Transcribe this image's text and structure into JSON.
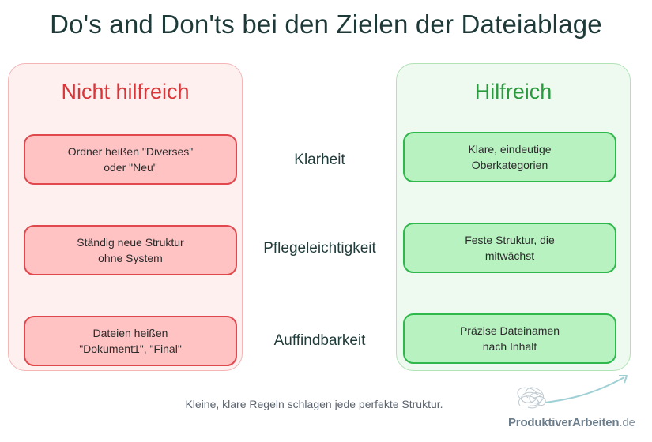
{
  "title": "Do's and Don'ts bei den Zielen der Dateiablage",
  "left_panel": {
    "title": "Nicht hilfreich",
    "items": [
      "Ordner heißen \"Diverses\"\noder \"Neu\"",
      "Ständig neue Struktur\nohne System",
      "Dateien heißen\n\"Dokument1\", \"Final\""
    ]
  },
  "criteria": [
    "Klarheit",
    "Pflegeleichtigkeit",
    "Auffindbarkeit"
  ],
  "right_panel": {
    "title": "Hilfreich",
    "items": [
      "Klare, eindeutige\nOberkategorien",
      "Feste Struktur, die\nmitwächst",
      "Präzise Dateinamen\nnach Inhalt"
    ]
  },
  "footer": "Kleine, klare Regeln schlagen jede perfekte Struktur.",
  "logo": {
    "name": "ProduktiverArbeiten",
    "tld": ".de",
    "icon": "scribble-arrow-icon"
  },
  "colors": {
    "negative_accent": "#e0484d",
    "negative_fill": "#ffc3c4",
    "positive_accent": "#2fb84c",
    "positive_fill": "#b8f2c1",
    "title": "#1e3a38"
  }
}
